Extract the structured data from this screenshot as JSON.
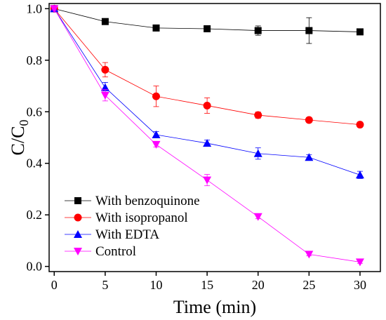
{
  "chart_data": {
    "type": "line",
    "xlabel": "Time (min)",
    "ylabel_main": "C/C",
    "ylabel_sub": "0",
    "xlim": [
      -0.5,
      32
    ],
    "ylim": [
      -0.02,
      1.02
    ],
    "xticks": [
      0,
      5,
      10,
      15,
      20,
      25,
      30
    ],
    "xtick_labels": [
      "0",
      "5",
      "10",
      "15",
      "20",
      "25",
      "30"
    ],
    "yticks": [
      0.0,
      0.2,
      0.4,
      0.6,
      0.8,
      1.0
    ],
    "ytick_labels": [
      "0.0",
      "0.2",
      "0.4",
      "0.6",
      "0.8",
      "1.0"
    ],
    "grid": false,
    "legend_position": "bottom-left",
    "x": [
      0,
      5,
      10,
      15,
      20,
      25,
      30
    ],
    "series": [
      {
        "name": "With benzoquinone",
        "color": "#000000",
        "marker": "square",
        "values": [
          1.0,
          0.95,
          0.925,
          0.922,
          0.915,
          0.915,
          0.91
        ],
        "errors": [
          0.005,
          0.008,
          0.008,
          0.012,
          0.018,
          0.05,
          0.008
        ]
      },
      {
        "name": "With isopropanol",
        "color": "#ff0000",
        "marker": "circle",
        "values": [
          1.0,
          0.763,
          0.66,
          0.624,
          0.587,
          0.568,
          0.55
        ],
        "errors": [
          0.005,
          0.028,
          0.04,
          0.03,
          0.012,
          0.01,
          0.01
        ]
      },
      {
        "name": "With EDTA",
        "color": "#0000ff",
        "marker": "triangle-up",
        "values": [
          1.0,
          0.694,
          0.511,
          0.478,
          0.438,
          0.423,
          0.355
        ],
        "errors": [
          0.005,
          0.02,
          0.012,
          0.012,
          0.022,
          0.01,
          0.014
        ]
      },
      {
        "name": "Control",
        "color": "#ff00ff",
        "marker": "triangle-down",
        "values": [
          1.0,
          0.664,
          0.473,
          0.335,
          0.193,
          0.047,
          0.017
        ],
        "errors": [
          0.005,
          0.022,
          0.01,
          0.022,
          0.008,
          0.006,
          0.005
        ]
      }
    ]
  }
}
